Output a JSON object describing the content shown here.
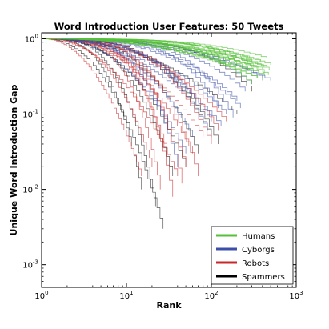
{
  "chart_data": {
    "type": "line",
    "title": "Word Introduction User Features: 50 Tweets",
    "xlabel": "Rank",
    "ylabel": "Unique Word Introduction Gap",
    "x_scale": "log",
    "y_scale": "log",
    "xlim": [
      1,
      1000
    ],
    "ylim": [
      0.0005,
      1.2
    ],
    "grid": false,
    "legend_position": "bottom-right",
    "x_ticks": [
      {
        "value": 1,
        "base": "10",
        "exp": "0"
      },
      {
        "value": 10,
        "base": "10",
        "exp": "1"
      },
      {
        "value": 100,
        "base": "10",
        "exp": "2"
      },
      {
        "value": 1000,
        "base": "10",
        "exp": "3"
      }
    ],
    "y_ticks": [
      {
        "value": 0.001,
        "base": "10",
        "exp": "-3"
      },
      {
        "value": 0.01,
        "base": "10",
        "exp": "-2"
      },
      {
        "value": 0.1,
        "base": "10",
        "exp": "-1"
      },
      {
        "value": 1,
        "base": "10",
        "exp": "0"
      }
    ],
    "series": [
      {
        "name": "Humans",
        "color": "#55c13a",
        "curves": [
          {
            "end_x": 300,
            "end_y": 0.5
          },
          {
            "end_x": 350,
            "end_y": 0.45
          },
          {
            "end_x": 400,
            "end_y": 0.4
          },
          {
            "end_x": 420,
            "end_y": 0.35
          },
          {
            "end_x": 450,
            "end_y": 0.42
          },
          {
            "end_x": 480,
            "end_y": 0.38
          },
          {
            "end_x": 500,
            "end_y": 0.45
          },
          {
            "end_x": 350,
            "end_y": 0.3
          },
          {
            "end_x": 380,
            "end_y": 0.5
          },
          {
            "end_x": 420,
            "end_y": 0.32
          },
          {
            "end_x": 300,
            "end_y": 0.25
          },
          {
            "end_x": 450,
            "end_y": 0.55
          },
          {
            "end_x": 400,
            "end_y": 0.28
          },
          {
            "end_x": 330,
            "end_y": 0.42
          },
          {
            "end_x": 470,
            "end_y": 0.33
          },
          {
            "end_x": 280,
            "end_y": 0.38
          },
          {
            "end_x": 360,
            "end_y": 0.36
          }
        ]
      },
      {
        "name": "Cyborgs",
        "color": "#3b4ea8",
        "curves": [
          {
            "end_x": 80,
            "end_y": 0.1
          },
          {
            "end_x": 100,
            "end_y": 0.08
          },
          {
            "end_x": 120,
            "end_y": 0.12
          },
          {
            "end_x": 150,
            "end_y": 0.1
          },
          {
            "end_x": 200,
            "end_y": 0.15
          },
          {
            "end_x": 250,
            "end_y": 0.2
          },
          {
            "end_x": 300,
            "end_y": 0.25
          },
          {
            "end_x": 60,
            "end_y": 0.05
          },
          {
            "end_x": 50,
            "end_y": 0.03
          },
          {
            "end_x": 180,
            "end_y": 0.09
          },
          {
            "end_x": 400,
            "end_y": 0.3
          },
          {
            "end_x": 500,
            "end_y": 0.28
          },
          {
            "end_x": 90,
            "end_y": 0.06
          },
          {
            "end_x": 220,
            "end_y": 0.12
          },
          {
            "end_x": 130,
            "end_y": 0.07
          },
          {
            "end_x": 40,
            "end_y": 0.02
          }
        ]
      },
      {
        "name": "Robots",
        "color": "#c8282a",
        "curves": [
          {
            "end_x": 20,
            "end_y": 0.02
          },
          {
            "end_x": 25,
            "end_y": 0.01
          },
          {
            "end_x": 30,
            "end_y": 0.03
          },
          {
            "end_x": 40,
            "end_y": 0.015
          },
          {
            "end_x": 50,
            "end_y": 0.02
          },
          {
            "end_x": 60,
            "end_y": 0.03
          },
          {
            "end_x": 70,
            "end_y": 0.015
          },
          {
            "end_x": 80,
            "end_y": 0.05
          },
          {
            "end_x": 100,
            "end_y": 0.04
          },
          {
            "end_x": 120,
            "end_y": 0.06
          },
          {
            "end_x": 150,
            "end_y": 0.08
          },
          {
            "end_x": 15,
            "end_y": 0.015
          },
          {
            "end_x": 35,
            "end_y": 0.008
          },
          {
            "end_x": 45,
            "end_y": 0.012
          }
        ]
      },
      {
        "name": "Spammers",
        "color": "#000000",
        "curves": [
          {
            "end_x": 15,
            "end_y": 0.01
          },
          {
            "end_x": 22,
            "end_y": 0.006
          },
          {
            "end_x": 27,
            "end_y": 0.003
          },
          {
            "end_x": 50,
            "end_y": 0.02
          },
          {
            "end_x": 70,
            "end_y": 0.03
          },
          {
            "end_x": 100,
            "end_y": 0.05
          },
          {
            "end_x": 200,
            "end_y": 0.1
          },
          {
            "end_x": 300,
            "end_y": 0.2
          },
          {
            "end_x": 120,
            "end_y": 0.04
          },
          {
            "end_x": 35,
            "end_y": 0.015
          }
        ]
      }
    ]
  }
}
